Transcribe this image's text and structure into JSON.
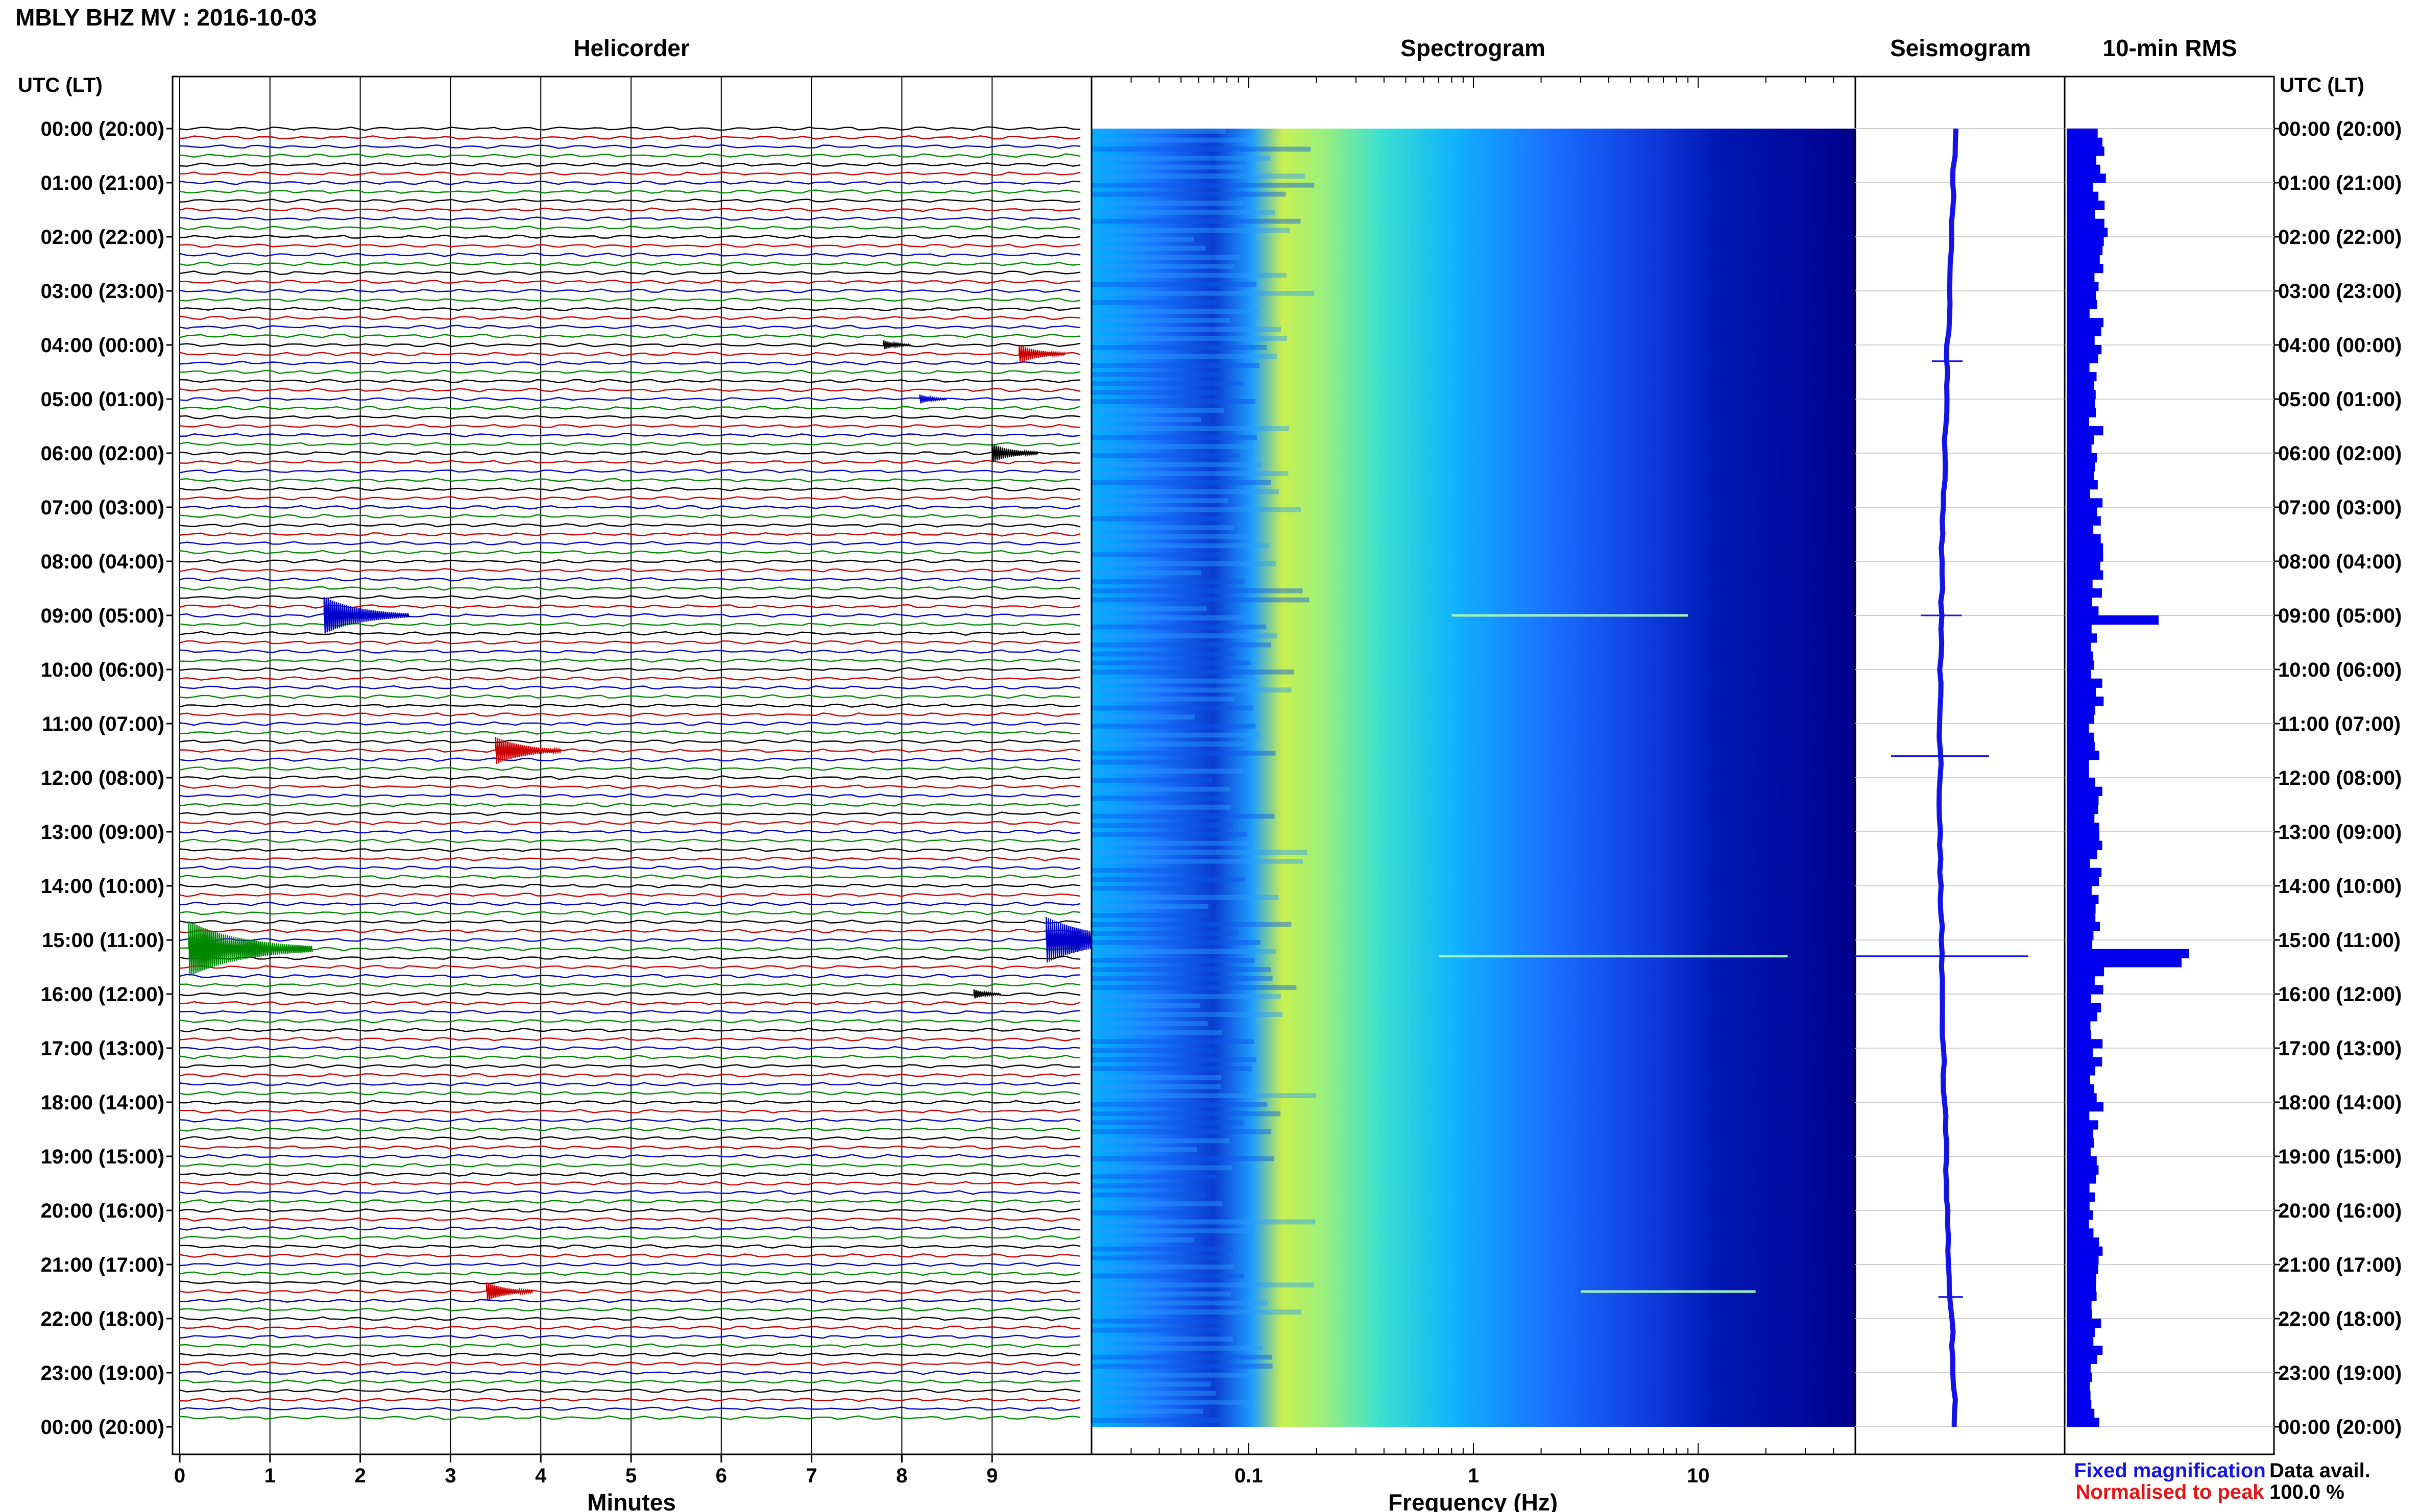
{
  "header": {
    "station_title": "MBLY BHZ MV : 2016-10-03"
  },
  "axes": {
    "left_title": "UTC (LT)",
    "right_title": "UTC (LT)"
  },
  "panels": {
    "helicorder": {
      "title": "Helicorder",
      "xlabel": "Minutes"
    },
    "spectrogram": {
      "title": "Spectrogram",
      "xlabel": "Frequency (Hz)"
    },
    "seismogram": {
      "title": "Seismogram"
    },
    "rms": {
      "title": "10-min RMS"
    }
  },
  "legend": {
    "fixed": "Fixed magnification",
    "normalised": "Normalised to peak",
    "fixed_color": "#1414e6",
    "normalised_color": "#e61414"
  },
  "data_availability": {
    "label": "Data avail.",
    "value": "100.0 %"
  },
  "chart_data": [
    {
      "type": "line",
      "name": "helicorder",
      "x_ticks": [
        0,
        1,
        2,
        3,
        4,
        5,
        6,
        7,
        8,
        9
      ],
      "xlim": [
        0,
        10
      ],
      "time_labels": [
        "00:00 (20:00)",
        "01:00 (21:00)",
        "02:00 (22:00)",
        "03:00 (23:00)",
        "04:00 (00:00)",
        "05:00 (01:00)",
        "06:00 (02:00)",
        "07:00 (03:00)",
        "08:00 (04:00)",
        "09:00 (05:00)",
        "10:00 (06:00)",
        "11:00 (07:00)",
        "12:00 (08:00)",
        "13:00 (09:00)",
        "14:00 (10:00)",
        "15:00 (11:00)",
        "16:00 (12:00)",
        "17:00 (13:00)",
        "18:00 (14:00)",
        "19:00 (15:00)",
        "20:00 (16:00)",
        "21:00 (17:00)",
        "22:00 (18:00)",
        "23:00 (19:00)",
        "00:00 (20:00)"
      ],
      "trace_colors": [
        "#000000",
        "#cc0000",
        "#0000cc",
        "#008800"
      ],
      "traces_per_hour": 6,
      "events": [
        {
          "hour": 4.0,
          "minute": 7.8,
          "size": 1
        },
        {
          "hour": 4.1,
          "minute": 9.3,
          "size": 2
        },
        {
          "hour": 5.0,
          "minute": 8.2,
          "size": 1
        },
        {
          "hour": 6.0,
          "minute": 9.0,
          "size": 2
        },
        {
          "hour": 9.0,
          "minute": 1.6,
          "size": 4
        },
        {
          "hour": 11.5,
          "minute": 3.5,
          "size": 3
        },
        {
          "hour": 15.2,
          "minute": 0.1,
          "size": 6
        },
        {
          "hour": 15.0,
          "minute": 9.6,
          "size": 5
        },
        {
          "hour": 16.0,
          "minute": 8.8,
          "size": 1
        },
        {
          "hour": 21.5,
          "minute": 3.4,
          "size": 2
        }
      ]
    },
    {
      "type": "heatmap",
      "name": "spectrogram",
      "x_scale": "log",
      "xlim": [
        0.02,
        50
      ],
      "x_tick_labels": [
        "0.1",
        "1",
        "10"
      ],
      "x_tick_values": [
        0.1,
        1,
        10
      ],
      "peak_frequency_hz": 0.22,
      "colormap": [
        "#00007a",
        "#0000c8",
        "#1e50ff",
        "#00b4ff",
        "#40e0c8",
        "#c8f050"
      ]
    },
    {
      "type": "line",
      "name": "seismogram",
      "spikes": [
        {
          "hour": 4.3,
          "amp": 0.15
        },
        {
          "hour": 9.0,
          "amp": 0.2
        },
        {
          "hour": 11.6,
          "amp": 0.48
        },
        {
          "hour": 15.3,
          "amp": 0.85
        },
        {
          "hour": 21.6,
          "amp": 0.12
        }
      ]
    },
    {
      "type": "bar",
      "name": "10-min RMS",
      "orientation": "horizontal",
      "baseline_level": 0.2,
      "peaks": [
        {
          "hour": 9.0,
          "value": 0.6
        },
        {
          "hour": 15.2,
          "value": 0.8
        },
        {
          "hour": 15.4,
          "value": 0.75
        }
      ],
      "color": "#0000ee"
    }
  ]
}
